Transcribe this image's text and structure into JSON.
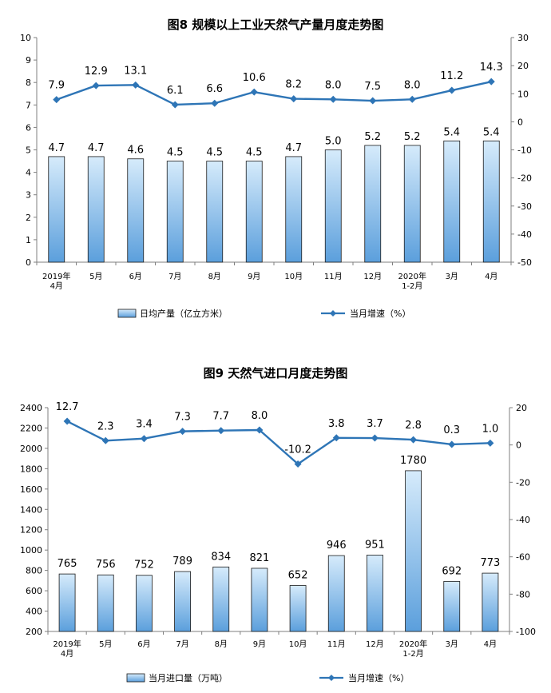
{
  "chart_data": [
    {
      "type": "bar",
      "title": "图8  规模以上工业天然气产量月度走势图",
      "categories": [
        "2019年\n4月",
        "5月",
        "6月",
        "7月",
        "8月",
        "9月",
        "10月",
        "11月",
        "12月",
        "2020年\n1-2月",
        "3月",
        "4月"
      ],
      "series": [
        {
          "name": "日均产量（亿立方米）",
          "kind": "bar",
          "axis": "left",
          "values": [
            4.7,
            4.7,
            4.6,
            4.5,
            4.5,
            4.5,
            4.7,
            5.0,
            5.2,
            5.2,
            5.4,
            5.4
          ],
          "labels": [
            "4.7",
            "4.7",
            "4.6",
            "4.5",
            "4.5",
            "4.5",
            "4.7",
            "5.0",
            "5.2",
            "5.2",
            "5.4",
            "5.4"
          ]
        },
        {
          "name": "当月增速（%）",
          "kind": "line",
          "axis": "right",
          "values": [
            7.9,
            12.9,
            13.1,
            6.1,
            6.6,
            10.6,
            8.2,
            8.0,
            7.5,
            8.0,
            11.2,
            14.3
          ],
          "labels": [
            "7.9",
            "12.9",
            "13.1",
            "6.1",
            "6.6",
            "10.6",
            "8.2",
            "8.0",
            "7.5",
            "8.0",
            "11.2",
            "14.3"
          ]
        }
      ],
      "ylim_left": [
        0,
        10
      ],
      "yticks_left": [
        "0",
        "1",
        "2",
        "3",
        "4",
        "5",
        "6",
        "7",
        "8",
        "9",
        "10"
      ],
      "ylim_right": [
        -50,
        30
      ],
      "yticks_right": [
        "-50",
        "-40",
        "-30",
        "-20",
        "-10",
        "0",
        "10",
        "20",
        "30"
      ],
      "grid": false,
      "legend": "bottom"
    },
    {
      "type": "bar",
      "title": "图9  天然气进口月度走势图",
      "categories": [
        "2019年\n4月",
        "5月",
        "6月",
        "7月",
        "8月",
        "9月",
        "10月",
        "11月",
        "12月",
        "2020年\n1-2月",
        "3月",
        "4月"
      ],
      "series": [
        {
          "name": "当月进口量（万吨）",
          "kind": "bar",
          "axis": "left",
          "values": [
            765,
            756,
            752,
            789,
            834,
            821,
            652,
            946,
            951,
            1780,
            692,
            773
          ],
          "labels": [
            "765",
            "756",
            "752",
            "789",
            "834",
            "821",
            "652",
            "946",
            "951",
            "1780",
            "692",
            "773"
          ]
        },
        {
          "name": "当月增速（%）",
          "kind": "line",
          "axis": "right",
          "values": [
            12.7,
            2.3,
            3.4,
            7.3,
            7.7,
            8.0,
            -10.2,
            3.8,
            3.7,
            2.8,
            0.3,
            1.0
          ],
          "labels": [
            "12.7",
            "2.3",
            "3.4",
            "7.3",
            "7.7",
            "8.0",
            "-10.2",
            "3.8",
            "3.7",
            "2.8",
            "0.3",
            "1.0"
          ]
        }
      ],
      "ylim_left": [
        200,
        2400
      ],
      "yticks_left": [
        "200",
        "400",
        "600",
        "800",
        "1000",
        "1200",
        "1400",
        "1600",
        "1800",
        "2000",
        "2200",
        "2400"
      ],
      "ylim_right": [
        -100,
        20
      ],
      "yticks_right": [
        "-100",
        "-80",
        "-60",
        "-40",
        "-20",
        "0",
        "20"
      ],
      "grid": false,
      "legend": "bottom"
    }
  ],
  "colors": {
    "bar_fill_top": "#d6ebfb",
    "bar_fill_bottom": "#5b9fdc",
    "bar_stroke": "#1a1a1a",
    "line": "#2e75b6",
    "axis": "#7f7f7f"
  }
}
